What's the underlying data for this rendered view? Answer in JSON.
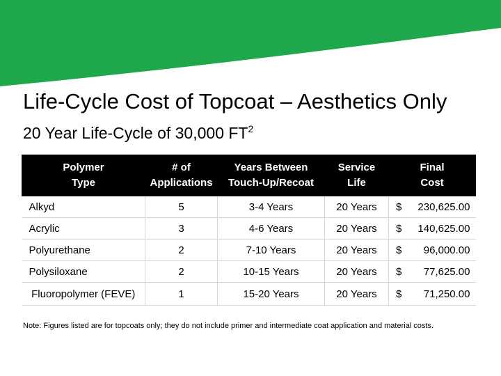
{
  "colors": {
    "banner_green": "#1fa84b",
    "header_bg": "#000000"
  },
  "slide": {
    "title": "Life-Cycle Cost of Topcoat – Aesthetics Only",
    "subtitle_main": "20 Year Life-Cycle of 30,000 FT",
    "subtitle_sup": "2"
  },
  "table": {
    "headers": [
      {
        "line1": "Polymer",
        "line2": "Type"
      },
      {
        "line1": "# of",
        "line2": "Applications"
      },
      {
        "line1": "Years Between",
        "line2": "Touch-Up/Recoat"
      },
      {
        "line1": "Service",
        "line2": "Life"
      },
      {
        "line1": "Final",
        "line2": "Cost"
      }
    ],
    "rows": [
      {
        "polymer": "Alkyd",
        "applications": "5",
        "interval": "3-4 Years",
        "service_life": "20 Years",
        "currency": "$",
        "cost": "230,625.00"
      },
      {
        "polymer": "Acrylic",
        "applications": "3",
        "interval": "4-6 Years",
        "service_life": "20 Years",
        "currency": "$",
        "cost": "140,625.00"
      },
      {
        "polymer": "Polyurethane",
        "applications": "2",
        "interval": "7-10 Years",
        "service_life": "20 Years",
        "currency": "$",
        "cost": "96,000.00"
      },
      {
        "polymer": "Polysiloxane",
        "applications": "2",
        "interval": "10-15 Years",
        "service_life": "20 Years",
        "currency": "$",
        "cost": "77,625.00"
      },
      {
        "polymer": "Fluoropolymer (FEVE)",
        "applications": "1",
        "interval": "15-20 Years",
        "service_life": "20 Years",
        "currency": "$",
        "cost": "71,250.00"
      }
    ]
  },
  "note": "Note: Figures listed are for topcoats only; they do not include primer and intermediate coat application and material costs."
}
